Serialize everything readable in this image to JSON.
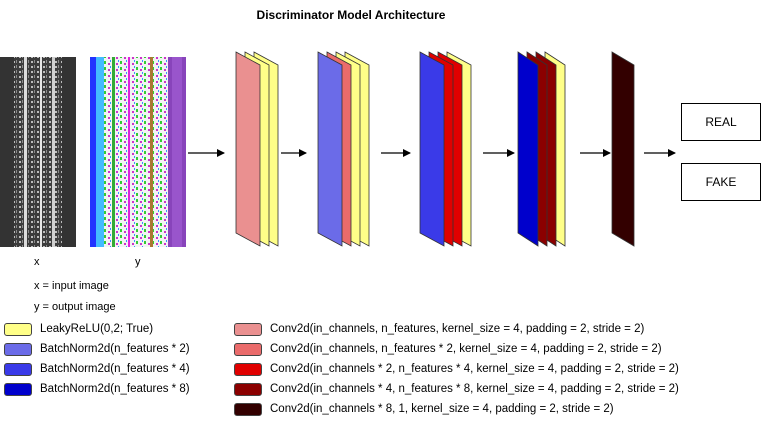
{
  "title": "Discriminator Model Architecture",
  "input_labels": {
    "x": "x",
    "y": "y"
  },
  "notes": {
    "x_note": "x = input image",
    "y_note": "y = output image"
  },
  "outputs": {
    "real": "REAL",
    "fake": "FAKE"
  },
  "colors": {
    "leaky": "#ffff88",
    "bn2": "#6b6be8",
    "bn4": "#3a3ae8",
    "bn8": "#0000cc",
    "conv1": "#ea9090",
    "conv2": "#ea6b6b",
    "conv3": "#e00000",
    "conv4": "#8b0000",
    "conv5": "#330000"
  },
  "legend_left": [
    {
      "label": "LeakyReLU(0,2; True)",
      "color": "#ffff88"
    },
    {
      "label": "BatchNorm2d(n_features * 2)",
      "color": "#6b6be8"
    },
    {
      "label": "BatchNorm2d(n_features * 4)",
      "color": "#3a3ae8"
    },
    {
      "label": "BatchNorm2d(n_features * 8)",
      "color": "#0000cc"
    }
  ],
  "legend_right": [
    {
      "label": "Conv2d(in_channels, n_features, kernel_size = 4, padding = 2, stride = 2)",
      "color": "#ea9090"
    },
    {
      "label": "Conv2d(in_channels, n_features * 2, kernel_size = 4, padding = 2, stride = 2)",
      "color": "#ea6b6b"
    },
    {
      "label": "Conv2d(in_channels * 2, n_features * 4, kernel_size = 4, padding = 2, stride = 2)",
      "color": "#e00000"
    },
    {
      "label": "Conv2d(in_channels * 4, n_features * 8, kernel_size = 4, padding = 2, stride = 2)",
      "color": "#8b0000"
    },
    {
      "label": "Conv2d(in_channels * 8, 1, kernel_size = 4, padding = 2, stride = 2)",
      "color": "#330000"
    }
  ]
}
